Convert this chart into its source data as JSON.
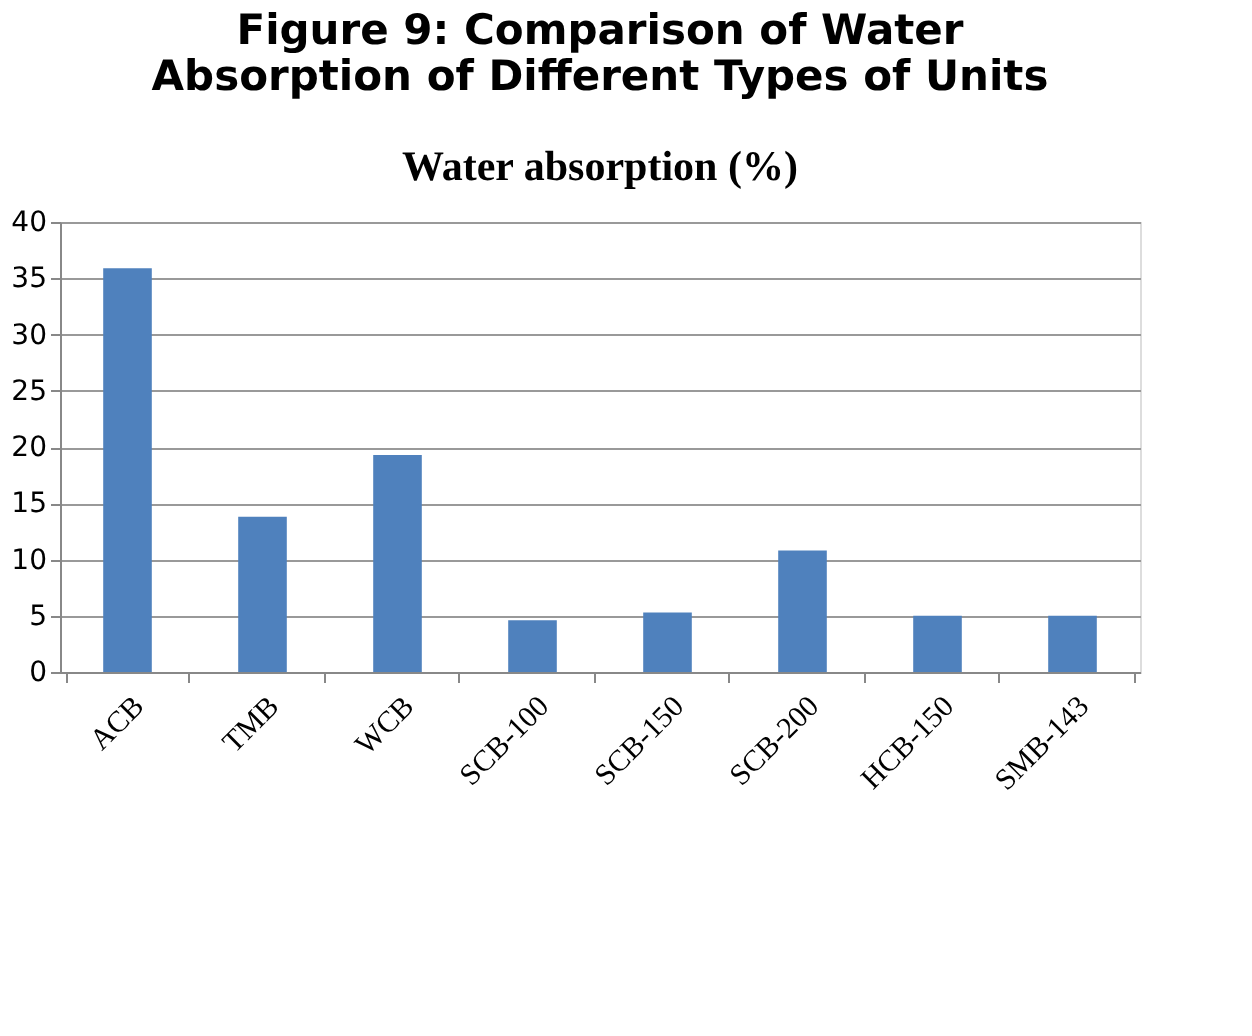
{
  "chart_data": {
    "type": "bar",
    "title": "Figure 9: Comparison of Water Absorption of Different Types of Units",
    "subtitle": "Water absorption (%)",
    "categories": [
      "ACB",
      "TMB",
      "WCB",
      "SCB-100",
      "SCB-150",
      "SCB-200",
      "HCB-150",
      "SMB-143"
    ],
    "values": [
      35.9,
      13.8,
      19.3,
      4.6,
      5.3,
      10.8,
      5.0,
      5.0
    ],
    "color": "#4f81bd",
    "ylim": [
      0,
      40
    ],
    "yticks": [
      0,
      5,
      10,
      15,
      20,
      25,
      30,
      35,
      40
    ],
    "grid": "y"
  }
}
